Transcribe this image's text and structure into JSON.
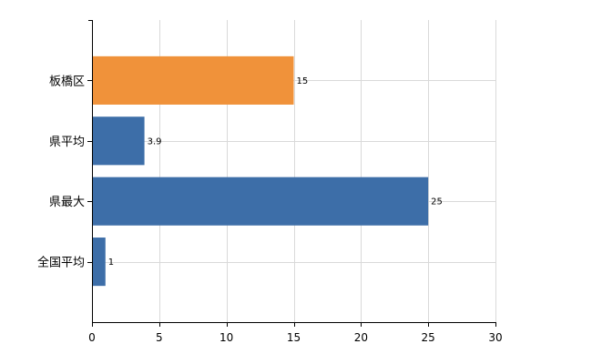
{
  "chart_data": {
    "type": "bar",
    "orientation": "horizontal",
    "categories": [
      "板橋区",
      "県平均",
      "県最大",
      "全国平均"
    ],
    "values": [
      15,
      3.9,
      25,
      1
    ],
    "value_labels": [
      "15",
      "3.9",
      "25",
      "1"
    ],
    "bar_colors": [
      "#f0923a",
      "#3d6ea8",
      "#3d6ea8",
      "#3d6ea8"
    ],
    "xlim": [
      0,
      30
    ],
    "xticks": [
      0,
      5,
      10,
      15,
      20,
      25,
      30
    ],
    "grid": true,
    "grid_color": "#d9d9d9",
    "title": "",
    "xlabel": "",
    "ylabel": ""
  }
}
